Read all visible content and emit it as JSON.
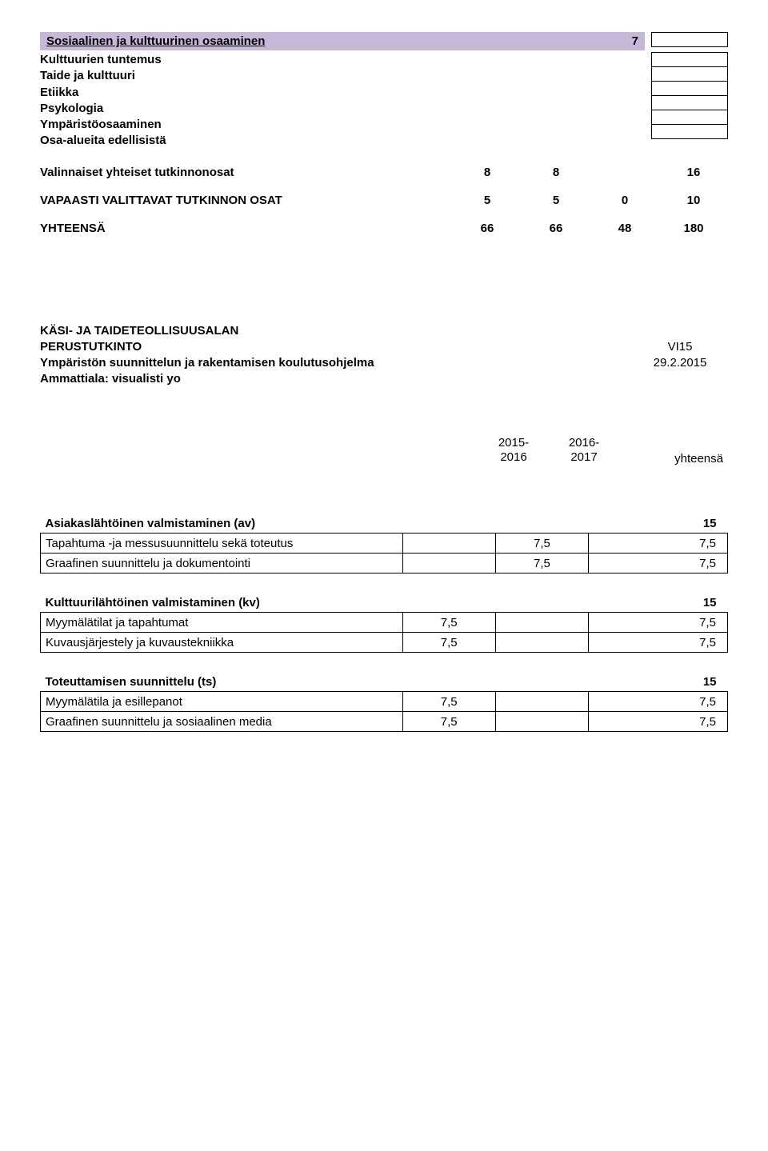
{
  "header": {
    "title": "Sosiaalinen ja kulttuurinen osaaminen",
    "right_num": "7",
    "items": [
      "Kulttuurien tuntemus",
      "Taide ja kulttuuri",
      "Etiikka",
      "Psykologia",
      "Ympäristöosaaminen",
      "Osa-alueita edellisistä"
    ]
  },
  "rows": [
    {
      "label": "Valinnaiset yhteiset tutkinnonosat",
      "n": [
        "8",
        "8",
        "",
        "16"
      ]
    },
    {
      "label": "VAPAASTI VALITTAVAT TUTKINNON OSAT",
      "n": [
        "5",
        "5",
        "0",
        "10"
      ]
    },
    {
      "label": "YHTEENSÄ",
      "n": [
        "66",
        "66",
        "48",
        "180"
      ]
    }
  ],
  "program": {
    "line1": "KÄSI- JA TAIDETEOLLISUUSALAN",
    "line2": "PERUSTUTKINTO",
    "code": "VI15",
    "line3": "Ympäristön suunnittelun ja rakentamisen koulutusohjelma",
    "date": "29.2.2015",
    "line4": "Ammattiala: visualisti yo"
  },
  "cols": {
    "c1a": "2015-",
    "c1b": "2016",
    "c2a": "2016-",
    "c2b": "2017",
    "c3": "yhteensä"
  },
  "groups": [
    {
      "title": "Asiakaslähtöinen valmistaminen (av)",
      "total": "15",
      "rows": [
        {
          "label": "Tapahtuma -ja messusuunnittelu sekä toteutus",
          "a": "",
          "b": "7,5",
          "c": "7,5"
        },
        {
          "label": "Graafinen suunnittelu ja dokumentointi",
          "a": "",
          "b": "7,5",
          "c": "7,5"
        }
      ]
    },
    {
      "title": "Kulttuurilähtöinen valmistaminen (kv)",
      "total": "15",
      "rows": [
        {
          "label": "Myymälätilat ja tapahtumat",
          "a": "7,5",
          "b": "",
          "c": "7,5"
        },
        {
          "label": "Kuvausjärjestely ja kuvaustekniikka",
          "a": "7,5",
          "b": "",
          "c": "7,5"
        }
      ]
    },
    {
      "title": "Toteuttamisen suunnittelu (ts)",
      "total": "15",
      "rows": [
        {
          "label": "Myymälätila ja esillepanot",
          "a": "7,5",
          "b": "",
          "c": "7,5"
        },
        {
          "label": "Graafinen suunnittelu ja sosiaalinen media",
          "a": "7,5",
          "b": "",
          "c": "7,5"
        }
      ]
    }
  ]
}
